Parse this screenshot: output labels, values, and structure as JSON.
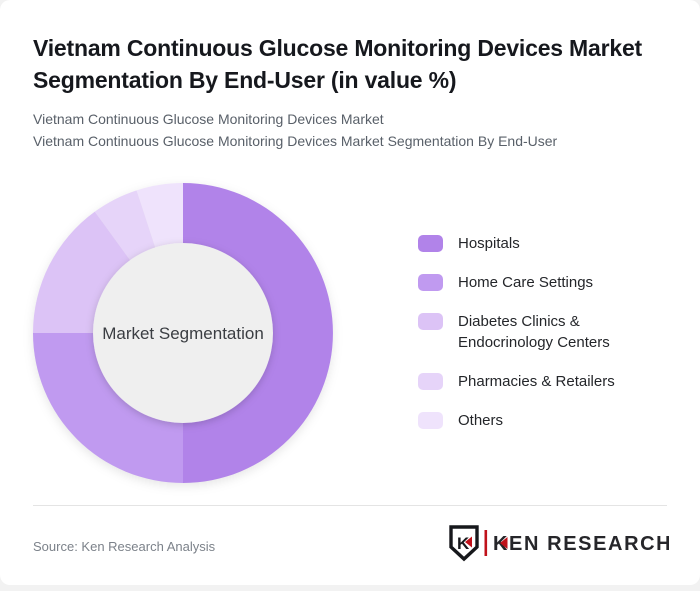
{
  "page": {
    "background_color": "#f2f2f2",
    "card_color": "#ffffff"
  },
  "header": {
    "title": "Vietnam Continuous Glucose Monitoring Devices Market Segmentation By End-User (in value %)",
    "subtitle_line1": "Vietnam Continuous Glucose Monitoring Devices Market",
    "subtitle_line2": "Vietnam Continuous Glucose Monitoring Devices Market Segmentation By End-User"
  },
  "chart_data": {
    "type": "pie",
    "donut": true,
    "inner_radius_ratio": 0.6,
    "start_angle_deg": 0,
    "direction": "clockwise",
    "title": "Vietnam Continuous Glucose Monitoring Devices Market Segmentation By End-User (in value %)",
    "center_label": "Market Segmentation",
    "categories": [
      "Hospitals",
      "Home Care Settings",
      "Diabetes Clinics & Endocrinology Centers",
      "Pharmacies & Retailers",
      "Others"
    ],
    "values": [
      50,
      25,
      15,
      5,
      5
    ],
    "unit": "%",
    "colors": [
      "#b183e9",
      "#c09af0",
      "#dcc3f6",
      "#e6d4f9",
      "#efe3fc"
    ],
    "hole_color": "#efefef",
    "center_label_color": "#3a3d42",
    "legend_position": "right"
  },
  "footer": {
    "source_text": "Source: Ken Research Analysis",
    "logo": {
      "shield_letter": "K",
      "text": "KEN RESEARCH",
      "accent_color": "#c0121b",
      "text_color": "#26262a"
    }
  }
}
